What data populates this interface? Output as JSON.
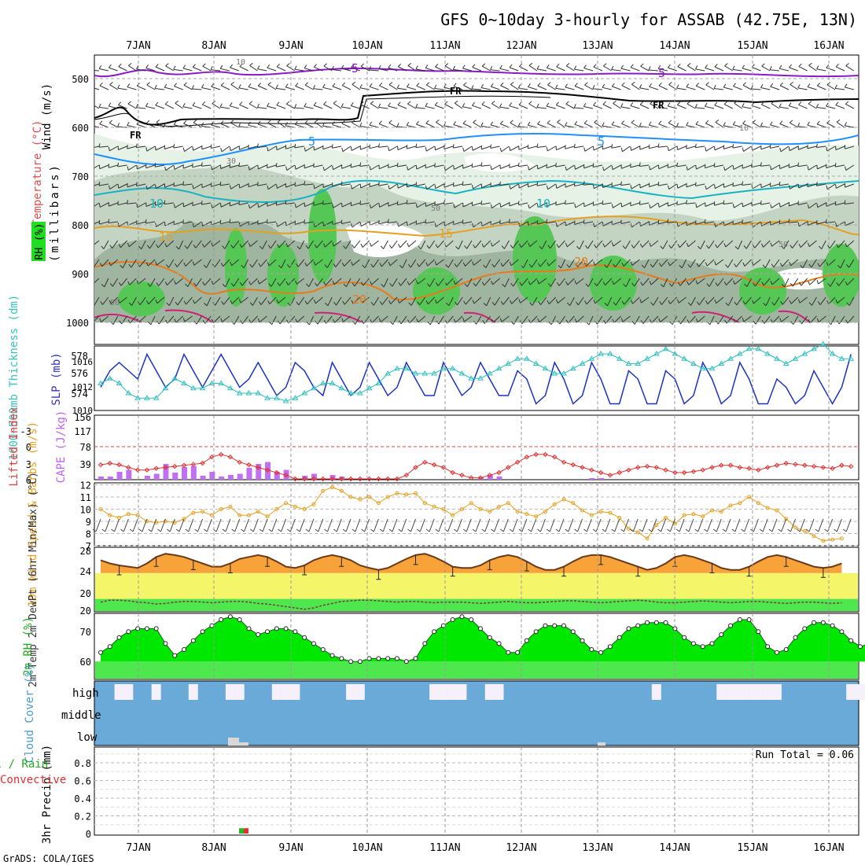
{
  "title": "GFS 0~10day 3-hourly for ASSAB (42.75E, 13N)",
  "footer": "GrADS: COLA/IGES",
  "run_total": "Run Total = 0.06",
  "colors": {
    "accent": "#000000",
    "cloud": "#6aaad8",
    "rh_green": "#22dd22",
    "temp_orange": "#f7a33a",
    "dewpt_green": "#4ee84e",
    "precip_orange": "#ff9900"
  },
  "days": [
    "7JAN",
    "8JAN",
    "9JAN",
    "10JAN",
    "11JAN",
    "12JAN",
    "13JAN",
    "14JAN",
    "15JAN",
    "16JAN"
  ],
  "chart_data": [
    {
      "type": "contour",
      "name": "upper-air",
      "ylabel_rh": "RH (%)",
      "ylabel_temp": "Temperature (°C)",
      "ylabel_wind": "Wind (m/s)",
      "ylabel_mb": "(millibars)",
      "yticks": [
        500,
        600,
        700,
        800,
        900,
        1000
      ],
      "temp_labels": [
        "-5",
        "-5",
        "5",
        "5",
        "10",
        "10",
        "15",
        "15",
        "20",
        "20"
      ],
      "freeze_label": "FR",
      "rh_labels": [
        "10",
        "10",
        "30",
        "50",
        "50",
        "50"
      ]
    },
    {
      "type": "line",
      "name": "thickness-slp",
      "ylabel_left": "1000~500mb Thickness (dm)",
      "ylabel_right": "SLP (mb)",
      "yticks_left": [
        "578",
        "576",
        "574"
      ],
      "yticks_right": [
        "1016",
        "1012",
        "1010"
      ],
      "series": [
        {
          "name": "SLP",
          "values": [
            1013,
            1015,
            1016,
            1015,
            1014,
            1017,
            1015,
            1013,
            1014,
            1017,
            1015,
            1013,
            1015,
            1017,
            1015,
            1013,
            1014,
            1016,
            1014,
            1012,
            1013,
            1016,
            1015,
            1013,
            1012,
            1016,
            1014,
            1012,
            1013,
            1016,
            1014,
            1012,
            1013,
            1016,
            1014,
            1012,
            1012,
            1016,
            1014,
            1012,
            1013,
            1016,
            1014,
            1012,
            1012,
            1015,
            1014,
            1011,
            1012,
            1016,
            1014,
            1011,
            1012,
            1016,
            1014,
            1011,
            1011,
            1015,
            1014,
            1011,
            1011,
            1015,
            1014,
            1011,
            1012,
            1016,
            1014,
            1011,
            1012,
            1016,
            1014,
            1011,
            1011,
            1014,
            1013,
            1011,
            1012,
            1015,
            1013,
            1011,
            1013,
            1017
          ]
        },
        {
          "name": "Thickness",
          "values": [
            575,
            575.5,
            575,
            574,
            573.5,
            573.5,
            573.5,
            574.5,
            575.5,
            575,
            574.5,
            574.5,
            575,
            575,
            574.5,
            574,
            574,
            574,
            573.5,
            573.5,
            573.2,
            573.5,
            574,
            574.5,
            575,
            575,
            574.5,
            574,
            574,
            574.5,
            575,
            576,
            576.5,
            576.5,
            576,
            576,
            576,
            576.5,
            576.5,
            576,
            575.5,
            575.5,
            576,
            576.5,
            577,
            577.5,
            577.5,
            577,
            576.5,
            576,
            576,
            576.5,
            577,
            577.5,
            578,
            578,
            577.5,
            577,
            577,
            577.5,
            578,
            578.5,
            578,
            577.5,
            577,
            576.5,
            576.5,
            577,
            577.5,
            578,
            578.5,
            578.5,
            578,
            577.5,
            577,
            577.5,
            578,
            578.5,
            579,
            578,
            577.5,
            577.5
          ]
        }
      ]
    },
    {
      "type": "bar-line",
      "name": "cape-li",
      "ylabel_left": "Lifted Index",
      "ylabel_right": "CAPE (J/kg)",
      "yticks_left": [
        "-3",
        "0",
        "3",
        "6"
      ],
      "yticks_right": [
        "156",
        "117",
        "78",
        "39"
      ],
      "ylim_cape": [
        0,
        156
      ],
      "ylim_li": [
        6,
        -6
      ],
      "cape": [
        8,
        8,
        20,
        25,
        0,
        10,
        15,
        40,
        18,
        32,
        35,
        10,
        20,
        8,
        12,
        15,
        30,
        40,
        45,
        20,
        25,
        0,
        10,
        15,
        0,
        12,
        8,
        0,
        0,
        0,
        0,
        0,
        0,
        0,
        0,
        0,
        0,
        0,
        0,
        0,
        0,
        6,
        12,
        8,
        0,
        0,
        0,
        0,
        0,
        0,
        0,
        0,
        0,
        4,
        4,
        0,
        0,
        0,
        0,
        0,
        0,
        0,
        0,
        0,
        0,
        0,
        0,
        0,
        0,
        0,
        0,
        0,
        0,
        0,
        0,
        0,
        0,
        0,
        0,
        0,
        0,
        0
      ],
      "li": [
        3.5,
        3.2,
        3.5,
        4,
        4.5,
        4.5,
        4.2,
        4,
        3.8,
        3.6,
        3.4,
        3.2,
        2,
        1.5,
        2,
        3,
        3.5,
        4,
        4.5,
        5,
        5.5,
        6.5,
        7,
        7,
        7,
        7,
        7,
        7,
        7,
        7,
        7,
        7,
        7,
        5.5,
        4,
        3,
        3.5,
        4,
        5,
        5.5,
        6,
        6,
        5.5,
        5,
        4,
        3,
        2,
        1.5,
        1.5,
        2,
        3,
        3.5,
        4,
        4.5,
        5,
        5.5,
        5,
        4.5,
        4,
        3.8,
        4,
        4.5,
        5,
        5,
        4.8,
        4.5,
        4,
        3.6,
        3.6,
        4,
        4.2,
        4.5,
        4,
        3.6,
        3.2,
        3.4,
        3.6,
        3.8,
        4,
        4.2,
        3.6,
        3.8
      ]
    },
    {
      "type": "line",
      "name": "wind10m",
      "ylabel": "10m Wind Speed & Barbs (m/s)",
      "yticks": [
        "12",
        "11",
        "10",
        "9",
        "8",
        "7"
      ],
      "ylim": [
        7,
        12
      ],
      "values": [
        10,
        9.5,
        9.3,
        9.6,
        9.5,
        9,
        8.9,
        9,
        8.9,
        9.2,
        9.7,
        9.8,
        9.5,
        10,
        10.2,
        9.5,
        9.5,
        9.8,
        9.4,
        10,
        10.5,
        10.2,
        10,
        10.4,
        11.5,
        11.8,
        11.5,
        11,
        10.8,
        11,
        10.5,
        11,
        11.3,
        11.2,
        11.3,
        10.5,
        10.2,
        10,
        9.5,
        10,
        10.5,
        10,
        9.8,
        10.2,
        10.5,
        9.8,
        9.6,
        9.4,
        9.8,
        10.4,
        10.8,
        10.5,
        9.9,
        9.5,
        9.8,
        9.7,
        9.3,
        8.4,
        8.1,
        7.6,
        8.7,
        9.3,
        8.8,
        9.5,
        9.6,
        9.4,
        9.9,
        9.8,
        10.3,
        10.5,
        11,
        10.5,
        10.1,
        9.9,
        9.2,
        8.5,
        8.2,
        7.8,
        7.4,
        7.5,
        7.6
      ]
    },
    {
      "type": "area",
      "name": "temp2m",
      "ylabel": "2m Temp 2m DewPt (6hr Min/Max) (°C)",
      "yticks": [
        "28",
        "24",
        "20",
        "20"
      ],
      "ylim": [
        18,
        28
      ],
      "temp": [
        26,
        25.5,
        25.2,
        25,
        24.8,
        25.5,
        26.5,
        27,
        26.8,
        26.5,
        26,
        25.5,
        25,
        25,
        25.5,
        26.2,
        26.5,
        26.8,
        26.5,
        25.8,
        25,
        24.8,
        25.2,
        26,
        26.5,
        26.8,
        26.5,
        26,
        25.2,
        24.8,
        24.5,
        24.8,
        25.5,
        26.2,
        26.8,
        27,
        26.5,
        25.8,
        25,
        24.8,
        24.8,
        25.2,
        26,
        26.5,
        26.8,
        26.5,
        25.8,
        25,
        24.5,
        24.5,
        25,
        25.8,
        26.5,
        26.8,
        26.8,
        26.5,
        26,
        25.5,
        25,
        24.5,
        24.8,
        25.5,
        26.5,
        26.8,
        26.5,
        26,
        25.5,
        24.8,
        24.5,
        24.5,
        25,
        25.8,
        26.5,
        26.8,
        26.5,
        26,
        25.5,
        25,
        24.8,
        25,
        25.5
      ],
      "dewpt": [
        19.5,
        19.8,
        19.8,
        19.7,
        19.5,
        19.4,
        19.2,
        19.3,
        19.5,
        19.6,
        19.6,
        19.5,
        19.4,
        19.5,
        19.6,
        19.6,
        19.5,
        19.3,
        19.2,
        19,
        18.8,
        18.6,
        18.4,
        18.6,
        19,
        19.3,
        19.6,
        19.7,
        19.8,
        19.8,
        19.7,
        19.6,
        19.5,
        19.6,
        19.6,
        19.5,
        19.4,
        19.5,
        19.5,
        19.5,
        19.4,
        19.3,
        19.4,
        19.5,
        19.6,
        19.5,
        19.4,
        19.4,
        19.5,
        19.6,
        19.7,
        19.7,
        19.6,
        19.5,
        19.4,
        19.5,
        19.6,
        19.7,
        19.8,
        19.7,
        19.5,
        19.4,
        19.4,
        19.5,
        19.6,
        19.7,
        19.6,
        19.5,
        19.4,
        19.5,
        19.6,
        19.6,
        19.5,
        19.4,
        19.3,
        19.4,
        19.5,
        19.5,
        19.4,
        19.3,
        19.4
      ]
    },
    {
      "type": "area",
      "name": "rh2m",
      "ylabel": "2m RH (%)",
      "yticks": [
        "70",
        "60"
      ],
      "ylim": [
        54,
        77
      ],
      "values": [
        63,
        65,
        68,
        70,
        71,
        71,
        71,
        66,
        62,
        64,
        67,
        70,
        72,
        74,
        75,
        74,
        71,
        69,
        70,
        71,
        71,
        70,
        68,
        66,
        64,
        62,
        61,
        60,
        60,
        61,
        61,
        61,
        61,
        60,
        61,
        66,
        70,
        72,
        74,
        75,
        74,
        71,
        68,
        66,
        63,
        63,
        67,
        70,
        72,
        72,
        72,
        70,
        67,
        64,
        63,
        65,
        68,
        71,
        72,
        73,
        73,
        73,
        71,
        68,
        66,
        65,
        66,
        69,
        72,
        74,
        74,
        70,
        65,
        63,
        64,
        68,
        71,
        73,
        73,
        72,
        70,
        67,
        65,
        66,
        68,
        70,
        72,
        74,
        74,
        72
      ]
    },
    {
      "type": "bar",
      "name": "cloud-cover",
      "ylabel": "Cloud Cover (%)",
      "levels": [
        "high",
        "middle",
        "low"
      ],
      "high": [
        0,
        0,
        1,
        1,
        0,
        0,
        1,
        0,
        0,
        0,
        1,
        0,
        0,
        0,
        1,
        1,
        0,
        0,
        0,
        1,
        1,
        1,
        0,
        0,
        0,
        0,
        0,
        1,
        1,
        0,
        0,
        0,
        0,
        0,
        0,
        0,
        1,
        1,
        1,
        1,
        0,
        0,
        1,
        1,
        0,
        0,
        0,
        0,
        0,
        0,
        0,
        0,
        0,
        0,
        0,
        0,
        0,
        0,
        0,
        0,
        1,
        0,
        0,
        0,
        0,
        0,
        0,
        1,
        1,
        1,
        1,
        1,
        1,
        1,
        0,
        0,
        0,
        0,
        0,
        0,
        0,
        1,
        1,
        0,
        0
      ]
    },
    {
      "type": "bar",
      "name": "precip",
      "ylabel": "3hr Precip (mm)",
      "legend": "Total / Rain Convective",
      "yticks": [
        "0.8",
        "0.6",
        "0.4",
        "0.2",
        "0"
      ],
      "ylim": [
        0,
        0.96
      ],
      "bars": [
        {
          "x": "8JAN 09Z",
          "value": 0.06
        }
      ]
    }
  ]
}
